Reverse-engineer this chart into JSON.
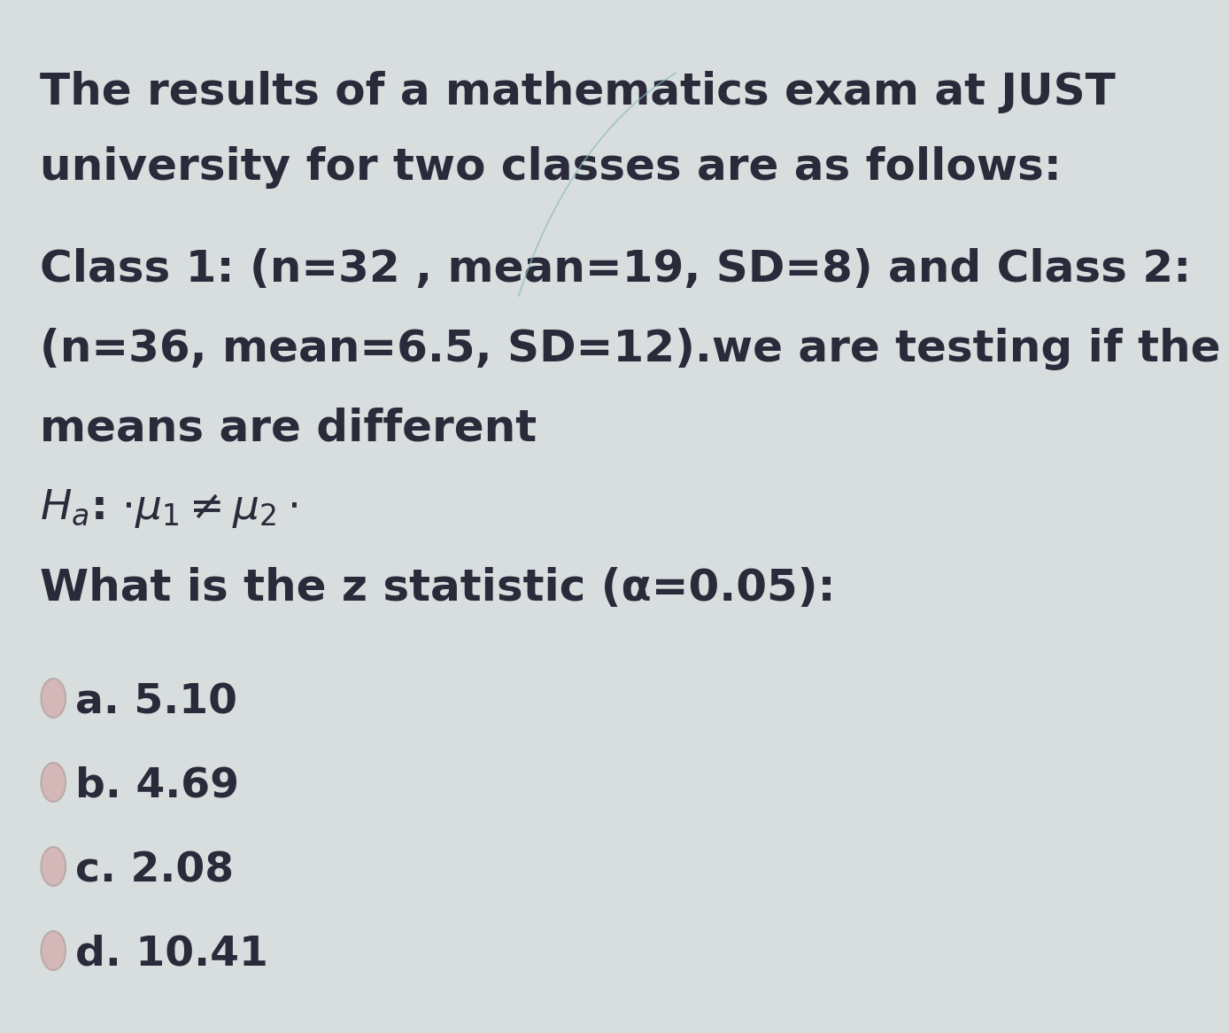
{
  "background_color": "#d8dede",
  "text_color": "#2a2a3a",
  "line1": "The results of a mathematics exam at JUST",
  "line2": "university for two classes are as follows:",
  "line3": "Class 1: (n=32 , mean=19, SD=8) and Class 2:",
  "line4": "(n=36, mean=6.5, SD=12).we are testing if the",
  "line5": "means are different",
  "line7": "What is the z statistic (α=0.05):",
  "options": [
    {
      "label": "a. 5.10"
    },
    {
      "label": "b. 4.69"
    },
    {
      "label": "c. 2.08"
    },
    {
      "label": "d. 10.41"
    }
  ],
  "font_size_main": 36,
  "font_size_hypothesis": 34,
  "font_size_options": 34,
  "circle_color": "#d4b8b8",
  "circle_edge_color": "#bbaaaa",
  "curve_color": "#8ab8b8"
}
